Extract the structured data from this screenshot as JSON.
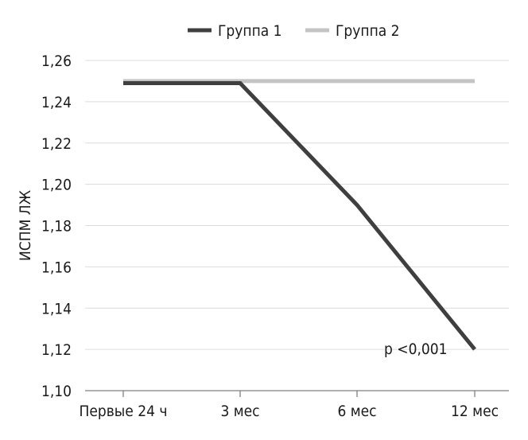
{
  "chart_data": {
    "type": "line",
    "categories": [
      "Первые 24 ч",
      "3 мес",
      "6 мес",
      "12 мес"
    ],
    "series": [
      {
        "name": "Группа 1",
        "values": [
          1.249,
          1.249,
          1.19,
          1.12
        ],
        "color": "#3f3f3f"
      },
      {
        "name": "Группа 2",
        "values": [
          1.25,
          1.25,
          1.25,
          1.25
        ],
        "color": "#c4c4c4"
      }
    ],
    "title": "",
    "xlabel": "",
    "ylabel": "ИСПМ ЛЖ",
    "ylim": [
      1.1,
      1.26
    ],
    "yticks": [
      "1,10",
      "1,12",
      "1,14",
      "1,16",
      "1,18",
      "1,20",
      "1,22",
      "1,24",
      "1,26"
    ],
    "grid": true,
    "legend_position": "top-center",
    "annotation": "p <0,001"
  }
}
